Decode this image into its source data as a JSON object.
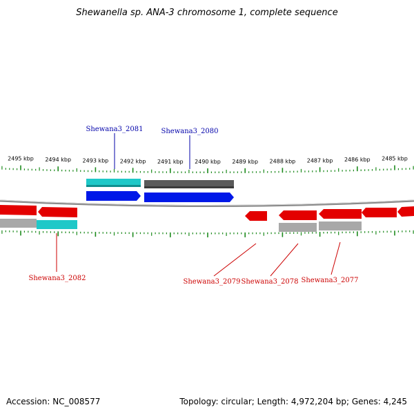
{
  "title": "Shewanella sp. ANA-3 chromosome 1, complete sequence",
  "accession": "Accession: NC_008577",
  "topology": "Topology: circular; Length: 4,972,204 bp; Genes: 4,245",
  "colors": {
    "forward_cds": "#0018e8",
    "forward_gene": "#5a5a5a",
    "forward_gene_alt": "#1ec8c8",
    "reverse_cds": "#e30000",
    "reverse_gene": "#a8a8a8",
    "reverse_gene_alt": "#1ec8c8",
    "ticks": "#1c8a1c",
    "backbone": "#8a8a8a",
    "label_forward": "#0000aa",
    "label_reverse": "#cc0000"
  },
  "ticks": [
    {
      "label": "2495 kbp",
      "kbp": 2495
    },
    {
      "label": "2494 kbp",
      "kbp": 2494
    },
    {
      "label": "2493 kbp",
      "kbp": 2493
    },
    {
      "label": "2492 kbp",
      "kbp": 2492
    },
    {
      "label": "2491 kbp",
      "kbp": 2491
    },
    {
      "label": "2490 kbp",
      "kbp": 2490
    },
    {
      "label": "2489 kbp",
      "kbp": 2489
    },
    {
      "label": "2488 kbp",
      "kbp": 2488
    },
    {
      "label": "2487 kbp",
      "kbp": 2487
    },
    {
      "label": "2486 kbp",
      "kbp": 2486
    },
    {
      "label": "2485 kbp",
      "kbp": 2485
    }
  ],
  "labels": [
    {
      "text": "Shewana3_2081",
      "strand": "forward"
    },
    {
      "text": "Shewana3_2080",
      "strand": "forward"
    },
    {
      "text": "Shewana3_2082",
      "strand": "reverse"
    },
    {
      "text": "Shewana3_2079",
      "strand": "reverse"
    },
    {
      "text": "Shewana3_2078",
      "strand": "reverse"
    },
    {
      "text": "Shewana3_2077",
      "strand": "reverse"
    }
  ]
}
